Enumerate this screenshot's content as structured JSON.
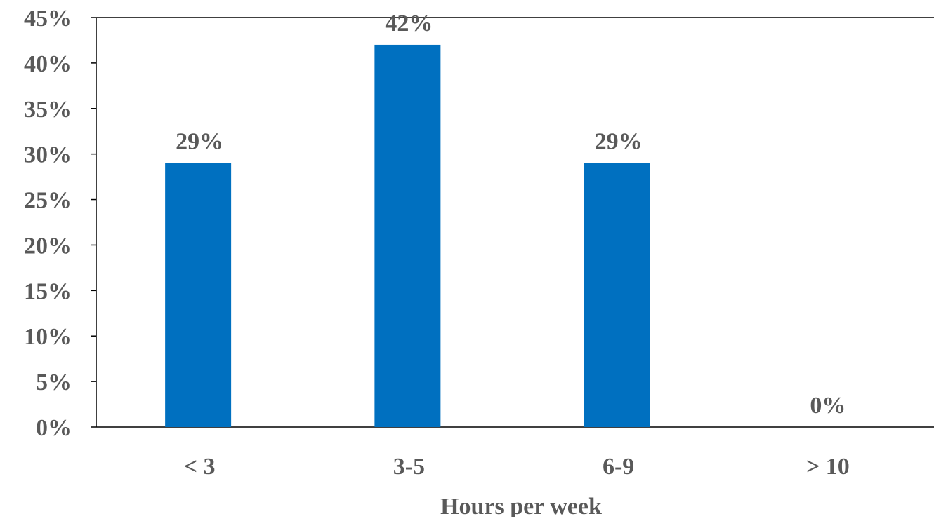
{
  "chart_data": {
    "type": "bar",
    "categories": [
      "< 3",
      "3-5",
      "6-9",
      "> 10"
    ],
    "values": [
      29,
      42,
      29,
      0
    ],
    "data_labels": [
      "29%",
      "42%",
      "29%",
      "0%"
    ],
    "title": "",
    "xlabel": "Hours per week",
    "ylabel": "",
    "ylim": [
      0,
      45
    ],
    "y_ticks": [
      0,
      5,
      10,
      15,
      20,
      25,
      30,
      35,
      40,
      45
    ],
    "y_tick_labels": [
      "0%",
      "5%",
      "10%",
      "15%",
      "20%",
      "25%",
      "30%",
      "35%",
      "40%",
      "45%"
    ],
    "grid": false,
    "legend": "none",
    "bar_color": "#0070C0",
    "text_color": "#595959"
  }
}
